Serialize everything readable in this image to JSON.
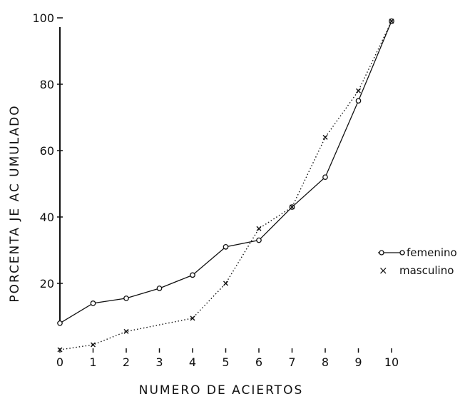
{
  "chart_data": {
    "type": "line",
    "xlabel": "NUMERO DE   ACIERTOS",
    "ylabel": "PORCENTA JE   AC UMULADO",
    "x": [
      0,
      1,
      2,
      3,
      4,
      5,
      6,
      7,
      8,
      9,
      10
    ],
    "xlim": [
      0,
      10
    ],
    "ylim": [
      0,
      100
    ],
    "x_ticks": [
      0,
      1,
      2,
      3,
      4,
      5,
      6,
      7,
      8,
      9,
      10
    ],
    "y_ticks": [
      20,
      40,
      60,
      80,
      100
    ],
    "y_tick_labels": [
      "20",
      "40",
      "60",
      "80",
      "100"
    ],
    "grid": false,
    "legend_position": "right",
    "series": [
      {
        "name": "femenino",
        "style": "solid",
        "marker": "circle",
        "color": "#111111",
        "values": [
          8,
          14,
          15.5,
          18.5,
          22.5,
          31,
          33,
          43,
          52,
          75,
          99
        ]
      },
      {
        "name": "masculino",
        "style": "dotted",
        "marker": "x",
        "color": "#111111",
        "values": [
          0,
          1.5,
          5.5,
          null,
          9.5,
          20,
          36.5,
          43,
          64,
          78,
          99
        ]
      }
    ]
  }
}
